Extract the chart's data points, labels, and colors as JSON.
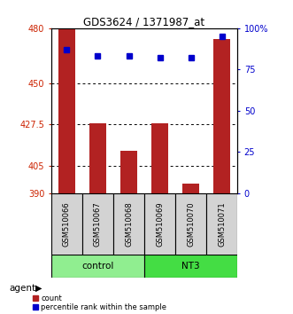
{
  "title": "GDS3624 / 1371987_at",
  "samples": [
    "GSM510066",
    "GSM510067",
    "GSM510068",
    "GSM510069",
    "GSM510070",
    "GSM510071"
  ],
  "counts": [
    480,
    428,
    413,
    428,
    395,
    474
  ],
  "percentiles": [
    87,
    83,
    83,
    82,
    82,
    95
  ],
  "ymin": 390,
  "ymax": 480,
  "yticks": [
    390,
    405,
    427.5,
    450,
    480
  ],
  "ytick_labels": [
    "390",
    "405",
    "427.5",
    "450",
    "480"
  ],
  "right_yticks": [
    0,
    25,
    50,
    75,
    100
  ],
  "right_ytick_labels": [
    "0",
    "25",
    "50",
    "75",
    "100%"
  ],
  "bar_color": "#B22222",
  "percentile_color": "#0000CC",
  "bar_width": 0.55,
  "left_axis_color": "#CC2200",
  "right_axis_color": "#0000CC",
  "control_color": "#90EE90",
  "nt3_color": "#44DD44",
  "sample_bg_color": "#D3D3D3",
  "legend_count_label": "count",
  "legend_percentile_label": "percentile rank within the sample"
}
